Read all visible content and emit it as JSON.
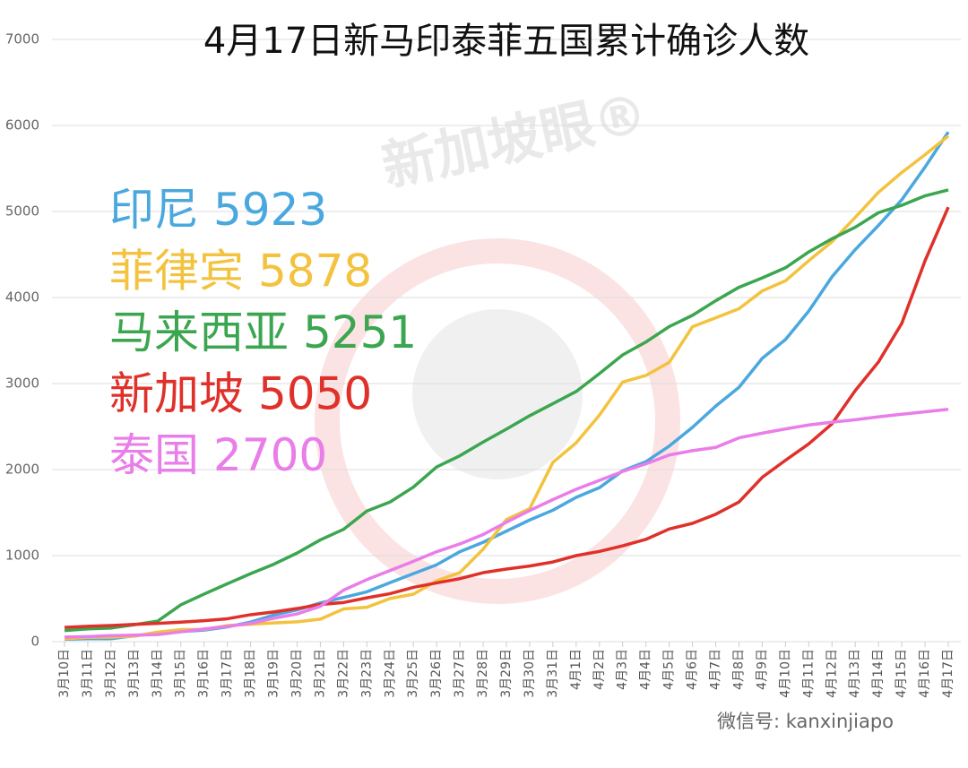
{
  "chart_data": {
    "type": "line",
    "title": "4月17日新马印泰菲五国累计确诊人数",
    "watermark": "新加坡眼®",
    "footer": "微信号: kanxinjiapo",
    "categories": [
      "3月10日",
      "3月11日",
      "3月12日",
      "3月13日",
      "3月14日",
      "3月15日",
      "3月16日",
      "3月17日",
      "3月18日",
      "3月19日",
      "3月20日",
      "3月21日",
      "3月22日",
      "3月23日",
      "3月24日",
      "3月25日",
      "3月26日",
      "3月27日",
      "3月28日",
      "3月29日",
      "3月30日",
      "3月31日",
      "4月1日",
      "4月2日",
      "4月3日",
      "4月4日",
      "4月5日",
      "4月6日",
      "4月7日",
      "4月8日",
      "4月9日",
      "4月10日",
      "4月11日",
      "4月12日",
      "4月13日",
      "4月14日",
      "4月15日",
      "4月16日",
      "4月17日"
    ],
    "series": [
      {
        "name": "印尼",
        "color": "#4aa8de",
        "values": [
          27,
          34,
          34,
          69,
          96,
          117,
          134,
          172,
          227,
          309,
          369,
          450,
          514,
          579,
          686,
          790,
          893,
          1046,
          1155,
          1285,
          1414,
          1528,
          1677,
          1790,
          1986,
          2092,
          2273,
          2491,
          2738,
          2956,
          3293,
          3512,
          3842,
          4241,
          4557,
          4839,
          5136,
          5516,
          5923
        ]
      },
      {
        "name": "菲律宾",
        "color": "#f3c23e",
        "values": [
          33,
          49,
          52,
          64,
          111,
          140,
          142,
          187,
          202,
          217,
          230,
          262,
          380,
          400,
          501,
          552,
          707,
          803,
          1075,
          1418,
          1546,
          2084,
          2311,
          2633,
          3018,
          3094,
          3246,
          3660,
          3764,
          3870,
          4076,
          4195,
          4428,
          4648,
          4932,
          5223,
          5453,
          5660,
          5878
        ]
      },
      {
        "name": "马来西亚",
        "color": "#3ba64f",
        "values": [
          129,
          149,
          158,
          197,
          238,
          428,
          553,
          673,
          790,
          900,
          1030,
          1183,
          1306,
          1518,
          1624,
          1796,
          2031,
          2161,
          2320,
          2470,
          2626,
          2766,
          2908,
          3116,
          3333,
          3483,
          3662,
          3793,
          3963,
          4119,
          4228,
          4346,
          4530,
          4683,
          4817,
          4987,
          5072,
          5182,
          5251
        ]
      },
      {
        "name": "新加坡",
        "color": "#e0302a",
        "values": [
          166,
          178,
          187,
          200,
          212,
          226,
          243,
          266,
          313,
          345,
          385,
          432,
          455,
          509,
          558,
          631,
          683,
          732,
          802,
          844,
          879,
          926,
          1000,
          1049,
          1114,
          1189,
          1309,
          1375,
          1481,
          1623,
          1910,
          2108,
          2299,
          2532,
          2918,
          3252,
          3699,
          4427,
          5050
        ]
      },
      {
        "name": "泰国",
        "color": "#e97de9",
        "values": [
          53,
          59,
          70,
          75,
          82,
          114,
          147,
          177,
          212,
          272,
          322,
          411,
          599,
          721,
          827,
          934,
          1045,
          1136,
          1245,
          1388,
          1524,
          1651,
          1771,
          1875,
          1978,
          2067,
          2169,
          2220,
          2258,
          2369,
          2423,
          2473,
          2518,
          2551,
          2579,
          2613,
          2643,
          2672,
          2700
        ]
      }
    ],
    "ylim": [
      0,
      7000
    ],
    "yticks": [
      0,
      1000,
      2000,
      3000,
      4000,
      5000,
      6000,
      7000
    ],
    "grid": true
  }
}
